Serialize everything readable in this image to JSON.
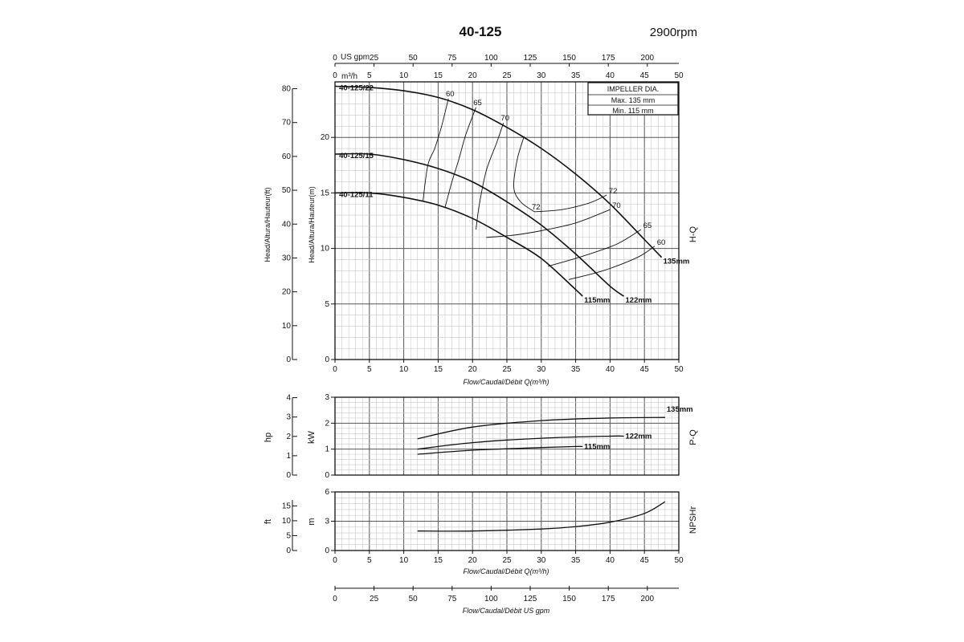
{
  "header": {
    "title": "40-125",
    "speed": "2900rpm"
  },
  "impeller_box": {
    "title": "IMPELLER DIA.",
    "max": "Max.  135  mm",
    "min": "Min.   115  mm"
  },
  "axis_text": {
    "top_us_unit": "US gpm",
    "top_m3h_unit": "m³/h",
    "flow_label": "Flow/Caudal/Débit Q(m³/h)",
    "flow_label_gpm": "Flow/Caudal/Débit  US gpm",
    "head_ft_label": "Head/Altura/Hauteur(ft)",
    "head_m_label": "Head/Altura/Hauteur(m)",
    "hp_label": "hp",
    "kw_label": "kW",
    "ft_label": "ft",
    "m_label": "m",
    "hq_side": "H-Q",
    "pq_side": "P-Q",
    "npsh_side": "NPSHr"
  },
  "chart_data": [
    {
      "type": "line",
      "name": "H-Q",
      "x_label": "Flow/Caudal/Débit Q(m³/h)",
      "y_label": "Head/Altura/Hauteur(m)",
      "xlim": [
        0,
        50
      ],
      "ylim": [
        0,
        25
      ],
      "grid": true,
      "x_ticks": [
        0,
        5,
        10,
        15,
        20,
        25,
        30,
        35,
        40,
        45,
        50
      ],
      "y_ticks": [
        0,
        5,
        10,
        15,
        20
      ],
      "y2_label": "Head/Altura/Hauteur(ft)",
      "y2_ticks": [
        0,
        10,
        20,
        30,
        40,
        50,
        60,
        70,
        80
      ],
      "top_axis_m3h_ticks": [
        0,
        5,
        10,
        15,
        20,
        25,
        30,
        35,
        40,
        45,
        50
      ],
      "top_axis_gpm_ticks": [
        0,
        25,
        50,
        75,
        100,
        125,
        150,
        175,
        200
      ],
      "series": [
        {
          "name": "135mm",
          "model": "40-125/22",
          "x": [
            0,
            5,
            10,
            15,
            20,
            25,
            30,
            35,
            40,
            45,
            47.5
          ],
          "y": [
            24.6,
            24.5,
            24.2,
            23.6,
            22.5,
            20.9,
            19.0,
            16.7,
            14.0,
            10.8,
            9.2
          ]
        },
        {
          "name": "122mm",
          "model": "40-125/15",
          "x": [
            0,
            5,
            10,
            15,
            20,
            25,
            30,
            35,
            40,
            42
          ],
          "y": [
            18.5,
            18.5,
            18.0,
            17.2,
            16.0,
            14.2,
            12.1,
            9.5,
            6.6,
            5.7
          ]
        },
        {
          "name": "115mm",
          "model": "40-125/11",
          "x": [
            0,
            5,
            10,
            15,
            20,
            25,
            30,
            35,
            36
          ],
          "y": [
            15.0,
            15.0,
            14.6,
            13.9,
            12.7,
            11.0,
            9.1,
            6.3,
            5.7
          ]
        }
      ],
      "efficiency_curves": [
        {
          "label": "60",
          "x": [
            12.8,
            13.5,
            14.5,
            15.5,
            16.5
          ],
          "y": [
            14.3,
            17.5,
            19.0,
            21.0,
            23.5
          ],
          "x_right": [
            34,
            39,
            44,
            46.5
          ],
          "y_right": [
            7.2,
            8.0,
            9.2,
            10.2
          ]
        },
        {
          "label": "65",
          "x": [
            16,
            17,
            18,
            19,
            20.5
          ],
          "y": [
            13.7,
            16.0,
            18.0,
            20.2,
            22.7
          ],
          "x_right": [
            31,
            36,
            41,
            44.5
          ],
          "y_right": [
            8.4,
            9.3,
            10.4,
            11.7
          ]
        },
        {
          "label": "70",
          "x": [
            20.5,
            21.0,
            22.0,
            23.5,
            24.5
          ],
          "y": [
            11.7,
            14.0,
            17.0,
            19.5,
            21.3
          ],
          "x_right": [
            22,
            26,
            30,
            35,
            40
          ],
          "y_right": [
            11.0,
            11.2,
            11.6,
            12.3,
            13.5
          ]
        },
        {
          "label": "72",
          "x": [
            27.5,
            26.5,
            26.0,
            27.0,
            29.0
          ],
          "y": [
            20.1,
            18.0,
            15.5,
            14.2,
            13.3
          ],
          "x_right": [
            29,
            33,
            37,
            39.5
          ],
          "y_right": [
            13.3,
            13.5,
            14.1,
            14.8
          ]
        }
      ]
    },
    {
      "type": "line",
      "name": "P-Q",
      "x_label": "",
      "y_label": "kW",
      "xlim": [
        0,
        50
      ],
      "ylim": [
        0,
        3
      ],
      "y_ticks": [
        0,
        1,
        2,
        3
      ],
      "y2_label": "hp",
      "y2_ticks": [
        0,
        1,
        2,
        3,
        4
      ],
      "series": [
        {
          "name": "135mm",
          "x": [
            12,
            20,
            30,
            40,
            48
          ],
          "y": [
            1.4,
            1.85,
            2.1,
            2.2,
            2.22
          ]
        },
        {
          "name": "122mm",
          "x": [
            12,
            20,
            30,
            40,
            42
          ],
          "y": [
            1.0,
            1.25,
            1.42,
            1.5,
            1.5
          ]
        },
        {
          "name": "115mm",
          "x": [
            12,
            20,
            30,
            35,
            36
          ],
          "y": [
            0.8,
            0.96,
            1.06,
            1.1,
            1.1
          ]
        }
      ]
    },
    {
      "type": "line",
      "name": "NPSHr",
      "x_label": "Flow/Caudal/Débit Q(m³/h)",
      "y_label": "m",
      "xlim": [
        0,
        50
      ],
      "ylim": [
        0,
        6
      ],
      "y_ticks": [
        0,
        3,
        6
      ],
      "y2_label": "ft",
      "y2_ticks": [
        0,
        5,
        10,
        15
      ],
      "x_ticks": [
        0,
        5,
        10,
        15,
        20,
        25,
        30,
        35,
        40,
        45,
        50
      ],
      "bottom_axis_gpm_ticks": [
        0,
        25,
        50,
        75,
        100,
        125,
        150,
        175,
        200
      ],
      "series": [
        {
          "name": "NPSHr",
          "x": [
            12,
            20,
            30,
            35,
            40,
            45,
            48
          ],
          "y": [
            2.0,
            2.0,
            2.2,
            2.45,
            2.9,
            3.8,
            5.0
          ]
        }
      ]
    }
  ]
}
